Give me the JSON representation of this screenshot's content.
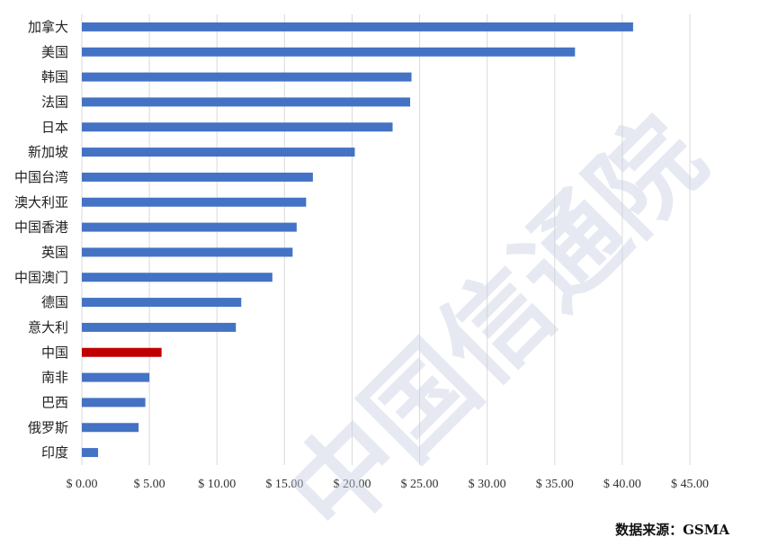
{
  "chart_data": {
    "type": "bar",
    "orientation": "horizontal",
    "categories": [
      "加拿大",
      "美国",
      "韩国",
      "法国",
      "日本",
      "新加坡",
      "中国台湾",
      "澳大利亚",
      "中国香港",
      "英国",
      "中国澳门",
      "德国",
      "意大利",
      "中国",
      "南非",
      "巴西",
      "俄罗斯",
      "印度"
    ],
    "values": [
      40.8,
      36.5,
      24.4,
      24.3,
      23.0,
      20.2,
      17.1,
      16.6,
      15.9,
      15.6,
      14.1,
      11.8,
      11.4,
      5.9,
      5.0,
      4.7,
      4.2,
      1.2
    ],
    "highlight_category": "中国",
    "xlim": [
      0,
      45
    ],
    "x_ticks": [
      "$ 0.00",
      "$ 5.00",
      "$ 10.00",
      "$ 15.00",
      "$ 20.00",
      "$ 25.00",
      "$ 30.00",
      "$ 35.00",
      "$ 40.00",
      "$ 45.00"
    ],
    "grid": "vertical",
    "colors": {
      "bar": "#4472c4",
      "highlight": "#c00000",
      "grid": "#d9d9d9"
    }
  },
  "watermark": "中国信通院",
  "source_note": "数据来源：GSMA"
}
